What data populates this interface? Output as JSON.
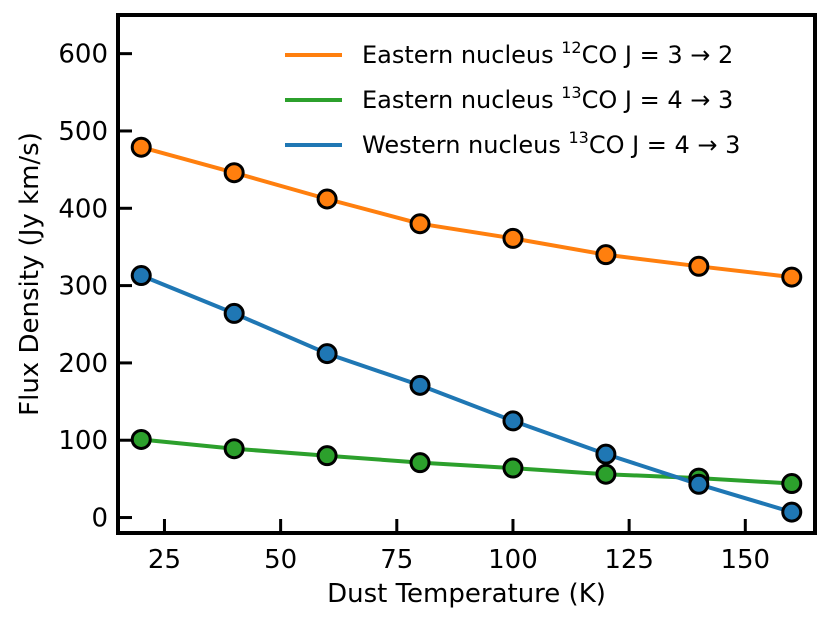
{
  "chart_data": {
    "type": "line",
    "xlabel": "Dust Temperature (K)",
    "ylabel": "Flux Density (Jy km/s)",
    "xlim": [
      15,
      165
    ],
    "ylim": [
      -20,
      650
    ],
    "xticks": [
      25,
      50,
      75,
      100,
      125,
      150
    ],
    "yticks": [
      0,
      100,
      200,
      300,
      400,
      500,
      600
    ],
    "grid": false,
    "legend_position": "top-right",
    "x": [
      20,
      40,
      60,
      80,
      100,
      120,
      140,
      160
    ],
    "series": [
      {
        "name": "Eastern nucleus ¹²CO J = 3→2",
        "legend": {
          "prefix": "Eastern nucleus ",
          "sup": "12",
          "suffix": "CO J = 3 → 2"
        },
        "color": "#ff7f0e",
        "values": [
          479,
          446,
          412,
          380,
          361,
          340,
          325,
          311
        ]
      },
      {
        "name": "Eastern nucleus ¹³CO J = 4→3",
        "legend": {
          "prefix": "Eastern nucleus ",
          "sup": "13",
          "suffix": "CO J = 4 → 3"
        },
        "color": "#2ca02c",
        "values": [
          101,
          89,
          80,
          71,
          64,
          56,
          51,
          44
        ]
      },
      {
        "name": "Western nucleus ¹³CO J = 4→3",
        "legend": {
          "prefix": "Western nucleus ",
          "sup": "13",
          "suffix": "CO J = 4 → 3"
        },
        "color": "#1f77b4",
        "values": [
          313,
          264,
          212,
          171,
          125,
          82,
          43,
          7
        ]
      }
    ]
  }
}
